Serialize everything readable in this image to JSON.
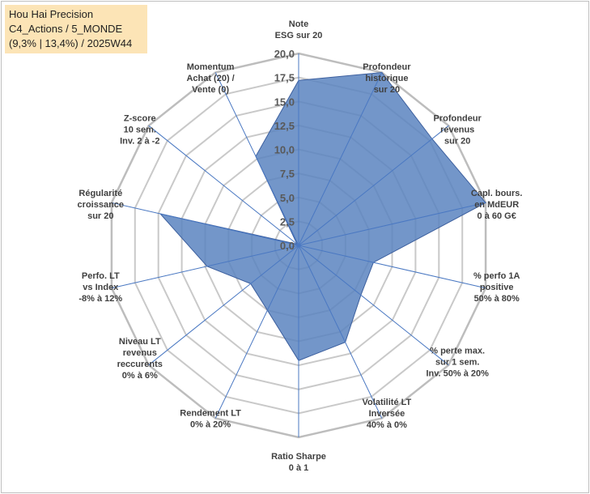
{
  "title": {
    "line1": "Hou Hai Precision",
    "line2": "C4_Actions / 5_MONDE",
    "line3": "(9,3% | 13,4%) / 2025W44"
  },
  "colors": {
    "fill": "#5b84c0",
    "stroke": "#3c5f9e",
    "grid": "#c9c9c9",
    "spoke": "#4a78c2",
    "title_bg": "#fce4b6"
  },
  "chart_data": {
    "type": "radar",
    "rmin": 0,
    "rmax": 20,
    "ticks": [
      "0,0",
      "2,5",
      "5,0",
      "7,5",
      "10,0",
      "12,5",
      "15,0",
      "17,5",
      "20,0"
    ],
    "tick_values": [
      0,
      2.5,
      5,
      7.5,
      10,
      12.5,
      15,
      17.5,
      20
    ],
    "grid": true,
    "axes": [
      {
        "label": [
          "Note",
          "ESG sur 20"
        ],
        "value": 17.2
      },
      {
        "label": [
          "Profondeur",
          "historique",
          "sur 20"
        ],
        "value": 20
      },
      {
        "label": [
          "Profondeur",
          "revenus",
          "sur 20"
        ],
        "value": 17.8
      },
      {
        "label": [
          "Capl. bours.",
          "en MdEUR",
          "0 à 60 G€"
        ],
        "value": 20
      },
      {
        "label": [
          "% perfo 1A",
          "positive",
          "50% à 80%"
        ],
        "value": 8
      },
      {
        "label": [
          "% perte max.",
          "sur 1 sem.",
          "Inv. 50% à 20%"
        ],
        "value": 8.3
      },
      {
        "label": [
          "Volatilité LT",
          "Inversée",
          "40% à 0%"
        ],
        "value": 11.2
      },
      {
        "label": [
          "Ratio Sharpe",
          "0 à 1"
        ],
        "value": 12
      },
      {
        "label": [
          "Rendement LT",
          "0% à 20%"
        ],
        "value": 7.5
      },
      {
        "label": [
          "Niveau LT",
          "revenus",
          "reccurents",
          "0% à 6%"
        ],
        "value": 6.4
      },
      {
        "label": [
          "Perfo. LT",
          "vs Index",
          "-8% à 12%"
        ],
        "value": 9.8
      },
      {
        "label": [
          "Régularité",
          "croissance",
          "sur 20"
        ],
        "value": 14.8
      },
      {
        "label": [
          "Z-score",
          "10 sem.",
          "Inv. 2 à -2"
        ],
        "value": 0.2
      },
      {
        "label": [
          "Momentum",
          "Achat (20) /",
          "Vente (0)"
        ],
        "value": 10.3
      }
    ]
  }
}
